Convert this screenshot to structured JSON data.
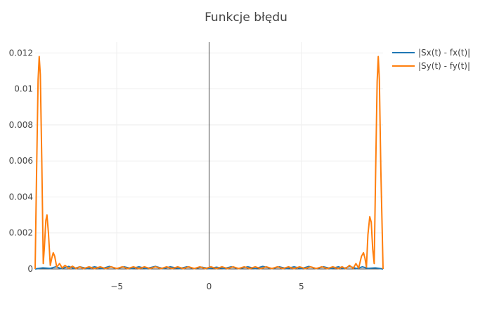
{
  "chart_data": {
    "type": "line",
    "title": "Funkcje błędu",
    "xlabel": "",
    "ylabel": "",
    "xlim": [
      -9.42,
      9.42
    ],
    "ylim": [
      0,
      0.0126
    ],
    "x_ticks": [
      -5,
      0,
      5
    ],
    "x_tick_labels": [
      "−5",
      "0",
      "5"
    ],
    "y_ticks": [
      0,
      0.002,
      0.004,
      0.006,
      0.008,
      0.01,
      0.012
    ],
    "y_tick_labels": [
      "0",
      "0.002",
      "0.004",
      "0.006",
      "0.008",
      "0.01",
      "0.012"
    ],
    "grid": true,
    "legend_position": "top-right",
    "series": [
      {
        "name": "|Sx(t) - fx(t)|",
        "color": "#1f77b4",
        "points": [
          [
            -9.42,
            0
          ],
          [
            -9.0,
            6e-05
          ],
          [
            -8.6,
            3e-05
          ],
          [
            -8.3,
            0.00012
          ],
          [
            -8.0,
            2e-05
          ],
          [
            -7.6,
            0.00014
          ],
          [
            -7.3,
            2e-05
          ],
          [
            -7.0,
            0.00012
          ],
          [
            -6.6,
            2e-05
          ],
          [
            -6.2,
            0.00012
          ],
          [
            -5.8,
            2e-05
          ],
          [
            -5.4,
            0.00014
          ],
          [
            -5.0,
            2e-05
          ],
          [
            -4.6,
            0.00012
          ],
          [
            -4.2,
            2e-05
          ],
          [
            -3.8,
            0.00012
          ],
          [
            -3.4,
            2e-05
          ],
          [
            -2.9,
            0.00014
          ],
          [
            -2.5,
            2e-05
          ],
          [
            -2.1,
            0.00012
          ],
          [
            -1.6,
            2e-05
          ],
          [
            -1.2,
            0.00012
          ],
          [
            -0.8,
            2e-05
          ],
          [
            -0.4,
            0.0001
          ],
          [
            0.0,
            2e-05
          ],
          [
            0.4,
            0.0001
          ],
          [
            0.8,
            2e-05
          ],
          [
            1.2,
            0.00012
          ],
          [
            1.6,
            2e-05
          ],
          [
            2.1,
            0.00012
          ],
          [
            2.5,
            2e-05
          ],
          [
            2.9,
            0.00014
          ],
          [
            3.4,
            2e-05
          ],
          [
            3.8,
            0.00012
          ],
          [
            4.2,
            2e-05
          ],
          [
            4.6,
            0.00012
          ],
          [
            5.0,
            2e-05
          ],
          [
            5.4,
            0.00014
          ],
          [
            5.8,
            2e-05
          ],
          [
            6.2,
            0.00012
          ],
          [
            6.6,
            2e-05
          ],
          [
            7.0,
            0.00012
          ],
          [
            7.3,
            2e-05
          ],
          [
            7.6,
            0.00014
          ],
          [
            8.0,
            2e-05
          ],
          [
            8.3,
            0.00012
          ],
          [
            8.6,
            3e-05
          ],
          [
            9.0,
            6e-05
          ],
          [
            9.42,
            0
          ]
        ]
      },
      {
        "name": "|Sy(t) - fy(t)|",
        "color": "#ff7f0e",
        "points": [
          [
            -9.42,
            0
          ],
          [
            -9.34,
            0.0055
          ],
          [
            -9.26,
            0.0105
          ],
          [
            -9.2,
            0.0118
          ],
          [
            -9.14,
            0.0108
          ],
          [
            -9.06,
            0.006
          ],
          [
            -8.98,
            0.0003
          ],
          [
            -8.92,
            0.0012
          ],
          [
            -8.84,
            0.0027
          ],
          [
            -8.78,
            0.003
          ],
          [
            -8.7,
            0.002
          ],
          [
            -8.6,
            0.0002
          ],
          [
            -8.52,
            0.0006
          ],
          [
            -8.44,
            0.0009
          ],
          [
            -8.36,
            0.0007
          ],
          [
            -8.25,
            0.0001
          ],
          [
            -8.1,
            0.0003
          ],
          [
            -7.95,
            5e-05
          ],
          [
            -7.8,
            0.0002
          ],
          [
            -7.6,
            3e-05
          ],
          [
            -7.4,
            0.00015
          ],
          [
            -7.2,
            2e-05
          ],
          [
            -7.0,
            0.00012
          ],
          [
            -6.8,
            2e-05
          ],
          [
            -6.5,
            0.00012
          ],
          [
            -6.2,
            2e-05
          ],
          [
            -5.9,
            0.00012
          ],
          [
            -5.6,
            2e-05
          ],
          [
            -5.3,
            0.00012
          ],
          [
            -5.0,
            2e-05
          ],
          [
            -4.7,
            0.00012
          ],
          [
            -4.4,
            2e-05
          ],
          [
            -4.1,
            0.00012
          ],
          [
            -3.8,
            2e-05
          ],
          [
            -3.5,
            0.00012
          ],
          [
            -3.2,
            2e-05
          ],
          [
            -2.9,
            0.00012
          ],
          [
            -2.6,
            2e-05
          ],
          [
            -2.3,
            0.00012
          ],
          [
            -2.0,
            2e-05
          ],
          [
            -1.7,
            0.00012
          ],
          [
            -1.4,
            2e-05
          ],
          [
            -1.1,
            0.00012
          ],
          [
            -0.8,
            2e-05
          ],
          [
            -0.5,
            0.00012
          ],
          [
            -0.2,
            2e-05
          ],
          [
            0.1,
            0.00012
          ],
          [
            0.4,
            2e-05
          ],
          [
            0.7,
            0.00012
          ],
          [
            1.0,
            2e-05
          ],
          [
            1.3,
            0.00012
          ],
          [
            1.6,
            2e-05
          ],
          [
            1.9,
            0.00012
          ],
          [
            2.2,
            2e-05
          ],
          [
            2.5,
            0.00012
          ],
          [
            2.8,
            2e-05
          ],
          [
            3.1,
            0.00012
          ],
          [
            3.4,
            2e-05
          ],
          [
            3.7,
            0.00012
          ],
          [
            4.0,
            2e-05
          ],
          [
            4.3,
            0.00012
          ],
          [
            4.6,
            2e-05
          ],
          [
            4.9,
            0.00012
          ],
          [
            5.2,
            2e-05
          ],
          [
            5.5,
            0.00012
          ],
          [
            5.8,
            2e-05
          ],
          [
            6.1,
            0.00012
          ],
          [
            6.4,
            2e-05
          ],
          [
            6.7,
            0.00012
          ],
          [
            7.0,
            2e-05
          ],
          [
            7.2,
            0.00012
          ],
          [
            7.4,
            2e-05
          ],
          [
            7.6,
            0.0002
          ],
          [
            7.8,
            3e-05
          ],
          [
            7.95,
            0.0003
          ],
          [
            8.1,
            5e-05
          ],
          [
            8.25,
            0.0007
          ],
          [
            8.36,
            0.0009
          ],
          [
            8.44,
            0.0006
          ],
          [
            8.52,
            0.0001
          ],
          [
            8.6,
            0.0019
          ],
          [
            8.7,
            0.0029
          ],
          [
            8.78,
            0.0026
          ],
          [
            8.86,
            0.0011
          ],
          [
            8.94,
            0.0003
          ],
          [
            9.02,
            0.0055
          ],
          [
            9.1,
            0.0104
          ],
          [
            9.16,
            0.0118
          ],
          [
            9.22,
            0.0105
          ],
          [
            9.3,
            0.0055
          ],
          [
            9.42,
            0
          ]
        ]
      }
    ]
  }
}
